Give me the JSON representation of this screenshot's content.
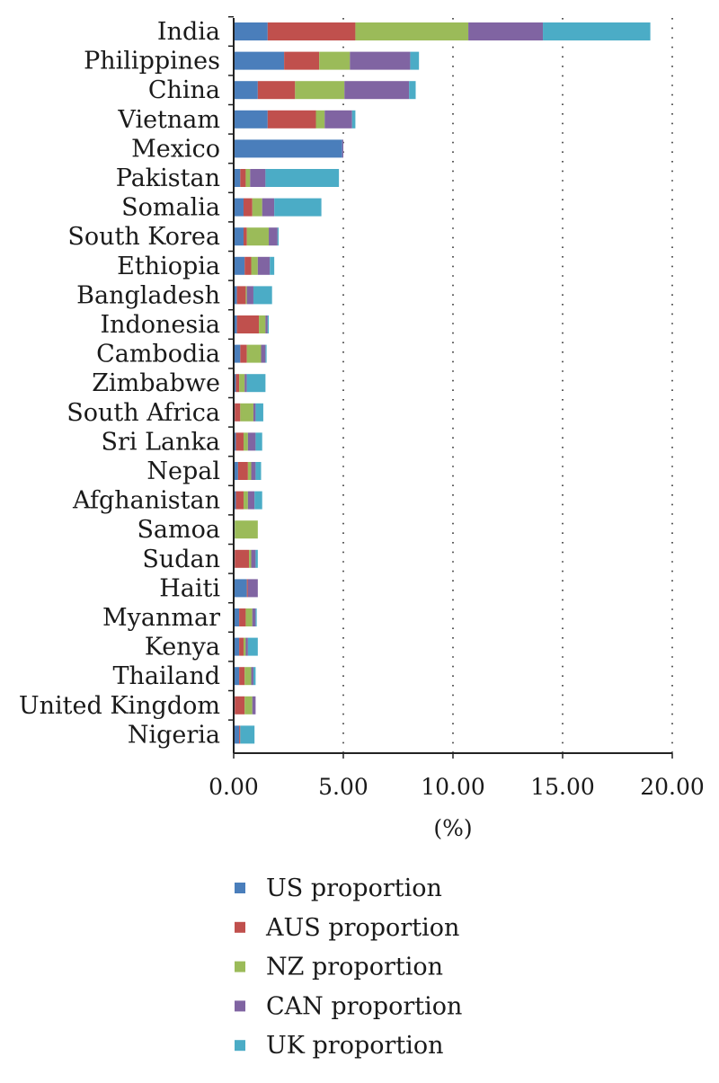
{
  "chart_data": {
    "type": "bar",
    "orientation": "horizontal",
    "stacked": true,
    "title": "",
    "xlabel": "(%)",
    "ylabel": "",
    "xlim": [
      0,
      20
    ],
    "x_ticks": [
      "0.00",
      "5.00",
      "10.00",
      "15.00",
      "20.00"
    ],
    "grid": "vertical dotted",
    "legend_position": "bottom",
    "categories": [
      "India",
      "Philippines",
      "China",
      "Vietnam",
      "Mexico",
      "Pakistan",
      "Somalia",
      "South Korea",
      "Ethiopia",
      "Bangladesh",
      "Indonesia",
      "Cambodia",
      "Zimbabwe",
      "South Africa",
      "Sri Lanka",
      "Nepal",
      "Afghanistan",
      "Samoa",
      "Sudan",
      "Haiti",
      "Myanmar",
      "Kenya",
      "Thailand",
      "United Kingdom",
      "Nigeria"
    ],
    "series": [
      {
        "name": "US proportion",
        "color": "#4a7ebb",
        "values": [
          1.55,
          2.3,
          1.1,
          1.55,
          4.95,
          0.3,
          0.45,
          0.45,
          0.5,
          0.15,
          0.15,
          0.3,
          0.1,
          0.05,
          0.1,
          0.2,
          0.1,
          0.05,
          0.05,
          0.6,
          0.25,
          0.25,
          0.25,
          0.05,
          0.25
        ]
      },
      {
        "name": "AUS proportion",
        "color": "#c0504d",
        "values": [
          4.0,
          1.6,
          1.7,
          2.2,
          0.0,
          0.25,
          0.4,
          0.15,
          0.3,
          0.4,
          1.0,
          0.3,
          0.15,
          0.25,
          0.35,
          0.45,
          0.35,
          0.0,
          0.65,
          0.05,
          0.3,
          0.2,
          0.25,
          0.45,
          0.05
        ]
      },
      {
        "name": "NZ proportion",
        "color": "#9bbb59",
        "values": [
          5.15,
          1.4,
          2.25,
          0.4,
          0.0,
          0.2,
          0.45,
          1.0,
          0.3,
          0.05,
          0.3,
          0.65,
          0.25,
          0.6,
          0.2,
          0.15,
          0.2,
          1.05,
          0.1,
          0.0,
          0.3,
          0.1,
          0.3,
          0.35,
          0.0
        ]
      },
      {
        "name": "CAN proportion",
        "color": "#8064a2",
        "values": [
          3.4,
          2.75,
          2.95,
          1.25,
          0.05,
          0.7,
          0.55,
          0.4,
          0.55,
          0.3,
          0.1,
          0.2,
          0.1,
          0.1,
          0.35,
          0.2,
          0.3,
          0.0,
          0.2,
          0.45,
          0.15,
          0.1,
          0.1,
          0.15,
          0.0
        ]
      },
      {
        "name": "UK proportion",
        "color": "#4bacc6",
        "values": [
          4.9,
          0.4,
          0.3,
          0.15,
          0.0,
          3.35,
          2.15,
          0.05,
          0.2,
          0.85,
          0.05,
          0.05,
          0.85,
          0.35,
          0.3,
          0.25,
          0.35,
          0.0,
          0.1,
          0.0,
          0.05,
          0.45,
          0.1,
          0.0,
          0.65
        ]
      }
    ]
  }
}
